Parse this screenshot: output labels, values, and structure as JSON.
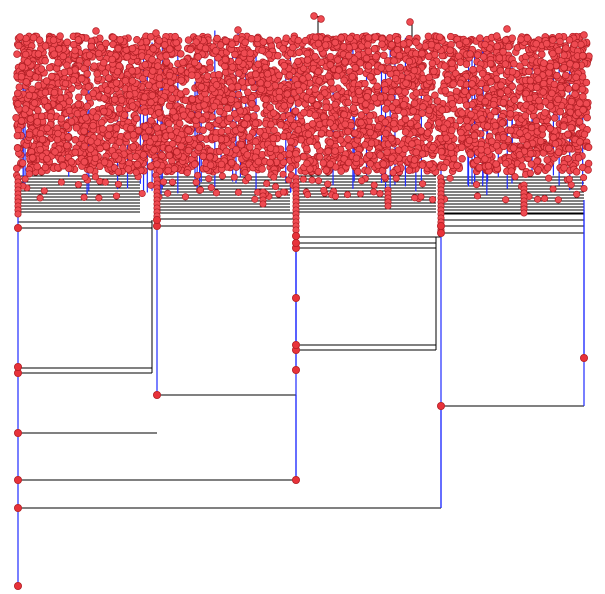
{
  "diagram": {
    "type": "hierarchical-tree",
    "title": "",
    "background_color": "#ffffff",
    "colors": {
      "horizontal_edge": "#000000",
      "vertical_edge": "#1f2bff",
      "node_fill": "#e8323a",
      "node_stroke": "#b01e24",
      "leaf_fill": "#ef4b52"
    },
    "root_children_count": 4,
    "leaf_density": "very-high"
  }
}
